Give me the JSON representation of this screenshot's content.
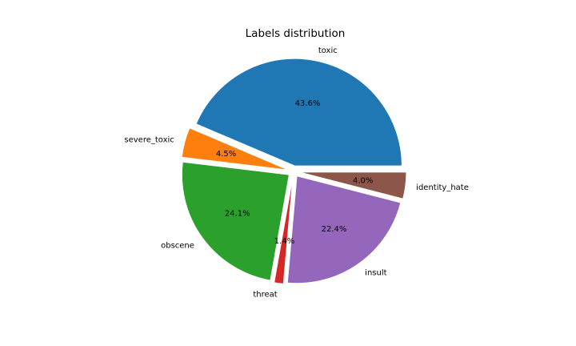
{
  "chart_data": {
    "type": "pie",
    "title": "Labels distribution",
    "categories": [
      "toxic",
      "severe_toxic",
      "obscene",
      "threat",
      "insult",
      "identity_hate"
    ],
    "values": [
      43.6,
      4.5,
      24.1,
      1.4,
      22.4,
      4.0
    ],
    "percent_labels": [
      "43.6%",
      "4.5%",
      "24.1%",
      "1.4%",
      "22.4%",
      "4.0%"
    ],
    "colors": [
      "#1f77b4",
      "#ff7f0e",
      "#2ca02c",
      "#d62728",
      "#9467bd",
      "#8c564b"
    ],
    "start_angle_deg": 0,
    "direction": "counterclockwise",
    "exploded": true,
    "legend": "none"
  }
}
